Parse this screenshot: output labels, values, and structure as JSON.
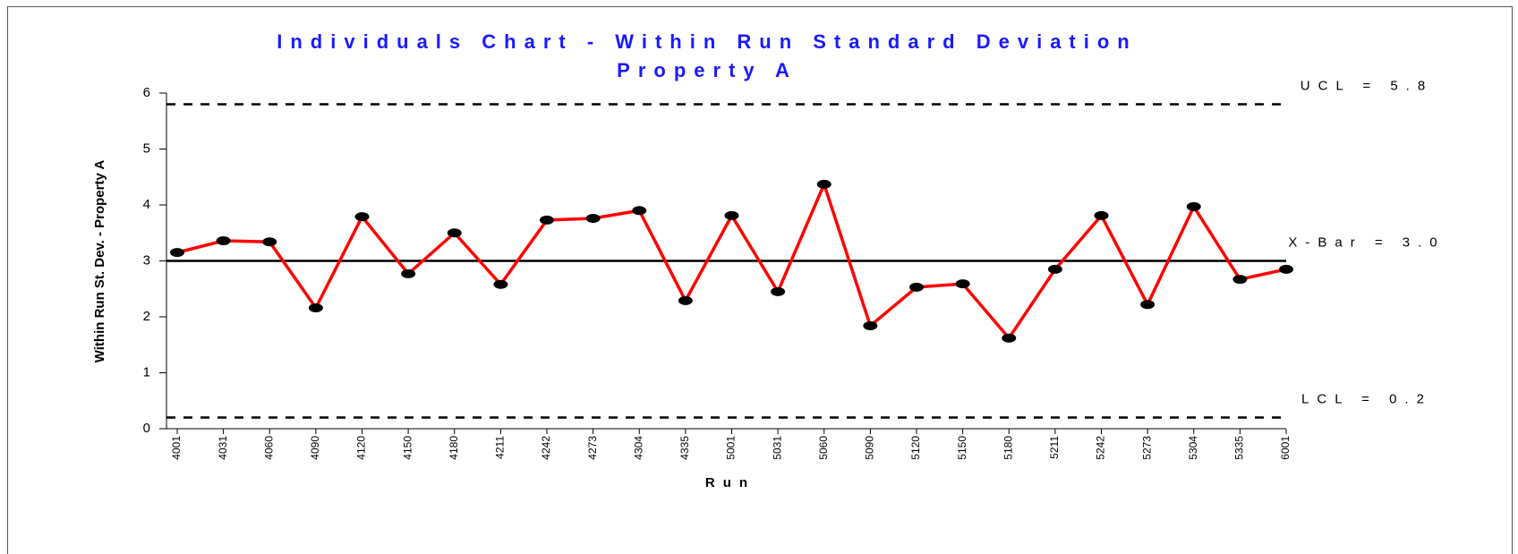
{
  "chart_data": {
    "type": "line",
    "title": "Individuals Chart - Within Run Standard Deviation",
    "subtitle": "Property A",
    "x_label": "Run",
    "y_label": "Within Run St. Dev. - Property A",
    "categories": [
      "4001",
      "4031",
      "4060",
      "4090",
      "4120",
      "4150",
      "4180",
      "4211",
      "4242",
      "4273",
      "4304",
      "4335",
      "5001",
      "5031",
      "5060",
      "5090",
      "5120",
      "5150",
      "5180",
      "5211",
      "5242",
      "5273",
      "5304",
      "5335",
      "6001"
    ],
    "series": [
      {
        "name": "Within Run St. Dev.",
        "color": "#ff0000",
        "values": [
          3.15,
          3.36,
          3.34,
          2.16,
          3.79,
          2.77,
          3.5,
          2.58,
          3.73,
          3.76,
          3.9,
          2.29,
          3.81,
          2.45,
          4.37,
          1.84,
          2.53,
          2.59,
          1.62,
          2.85,
          3.81,
          2.22,
          3.97,
          2.67,
          2.85
        ]
      }
    ],
    "control_lines": [
      {
        "label": "UCL = 5.8",
        "value": 5.8,
        "style": "dashed"
      },
      {
        "label": "X-Bar = 3.0",
        "value": 3.0,
        "style": "solid"
      },
      {
        "label": "LCL = 0.2",
        "value": 0.2,
        "style": "dashed"
      }
    ],
    "ylim": [
      0,
      6
    ],
    "yticks": [
      0,
      1,
      2,
      3,
      4,
      5,
      6
    ]
  }
}
